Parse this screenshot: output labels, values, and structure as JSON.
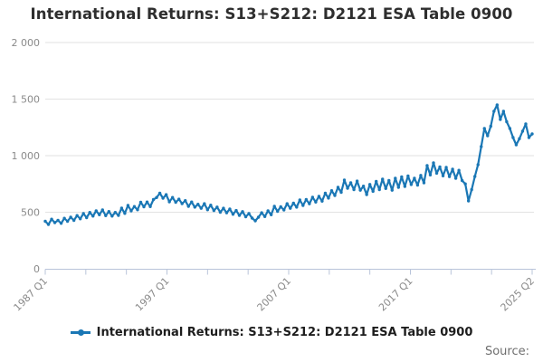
{
  "title": "International Returns: S13+S212: D2121 ESA Table 0900",
  "legend": {
    "label": "International Returns: S13+S212: D2121 ESA Table 0900",
    "marker_icon": "line-with-dot-icon"
  },
  "source": {
    "label": "Source:"
  },
  "colors": {
    "line": "#1a77b5",
    "title_text": "#2e2e2e",
    "axis_text": "#8a8a8a",
    "gridline": "#e2e2e2",
    "axis_line": "#b9c4da",
    "background": "#ffffff"
  },
  "chart_data": {
    "type": "line",
    "title": "International Returns: S13+S212: D2121 ESA Table 0900",
    "frequency": "quarterly",
    "x_start": "1987 Q1",
    "x_end": "2025 Q2",
    "x_tick_labels": [
      "1987 Q1",
      "1997 Q1",
      "2007 Q1",
      "2017 Q1",
      "2025 Q2"
    ],
    "x_tick_count": 13,
    "x_labeled_tick_indices": [
      0,
      3,
      6,
      9,
      12
    ],
    "y_tick_labels": [
      "2 000",
      "1 500",
      "1 000",
      "500",
      "0"
    ],
    "y_tick_values": [
      2000,
      1500,
      1000,
      500,
      0
    ],
    "ylim": [
      0,
      2000
    ],
    "grid": "horizontal-only",
    "legend_position": "bottom",
    "marker": "dot",
    "series": [
      {
        "name": "International Returns: S13+S212: D2121 ESA Table 0900",
        "color": "#1a77b5",
        "values": [
          420,
          392,
          438,
          408,
          428,
          402,
          446,
          420,
          456,
          428,
          470,
          442,
          488,
          452,
          498,
          466,
          512,
          478,
          520,
          470,
          506,
          466,
          498,
          472,
          536,
          490,
          560,
          512,
          550,
          522,
          588,
          548,
          590,
          550,
          612,
          630,
          668,
          624,
          655,
          592,
          630,
          588,
          615,
          576,
          602,
          552,
          590,
          545,
          570,
          535,
          575,
          522,
          562,
          515,
          545,
          500,
          535,
          495,
          528,
          482,
          515,
          472,
          505,
          460,
          488,
          448,
          424,
          456,
          495,
          462,
          512,
          478,
          552,
          508,
          548,
          520,
          575,
          535,
          580,
          545,
          608,
          560,
          612,
          575,
          632,
          590,
          640,
          598,
          668,
          625,
          690,
          648,
          720,
          676,
          784,
          712,
          760,
          700,
          775,
          695,
          730,
          656,
          745,
          685,
          772,
          700,
          792,
          710,
          780,
          695,
          800,
          720,
          812,
          728,
          820,
          745,
          800,
          740,
          825,
          760,
          912,
          830,
          936,
          845,
          900,
          822,
          896,
          815,
          880,
          800,
          870,
          780,
          750,
          600,
          700,
          816,
          920,
          1080,
          1240,
          1176,
          1260,
          1392,
          1448,
          1320,
          1392,
          1300,
          1240,
          1160,
          1096,
          1150,
          1216,
          1280,
          1160,
          1192
        ]
      }
    ]
  }
}
